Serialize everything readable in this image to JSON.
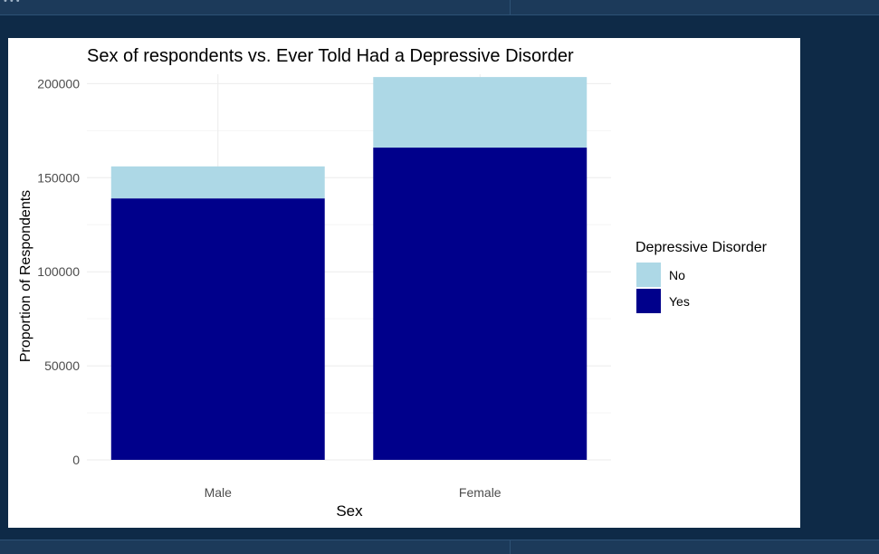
{
  "colors": {
    "no": "#add8e6",
    "yes": "#00008b",
    "grid_major": "#ebebeb",
    "grid_minor": "#f5f5f5",
    "tick_text": "#4d4d4d",
    "text": "#000000"
  },
  "chart_data": {
    "type": "bar",
    "stacked": true,
    "title": "Sex of respondents vs. Ever Told Had a Depressive Disorder",
    "xlabel": "Sex",
    "ylabel": "Proportion of Respondents",
    "categories": [
      "Male",
      "Female"
    ],
    "series": [
      {
        "name": "Yes",
        "values": [
          139000,
          166000
        ]
      },
      {
        "name": "No",
        "values": [
          17000,
          37500
        ]
      }
    ],
    "ylim": [
      0,
      205000
    ],
    "yticks": [
      0,
      50000,
      100000,
      150000,
      200000
    ],
    "ytick_labels": [
      "0",
      "50000",
      "100000",
      "150000",
      "200000"
    ],
    "legend": {
      "title": "Depressive Disorder",
      "position": "right",
      "entries": [
        "No",
        "Yes"
      ]
    },
    "grid": true
  }
}
